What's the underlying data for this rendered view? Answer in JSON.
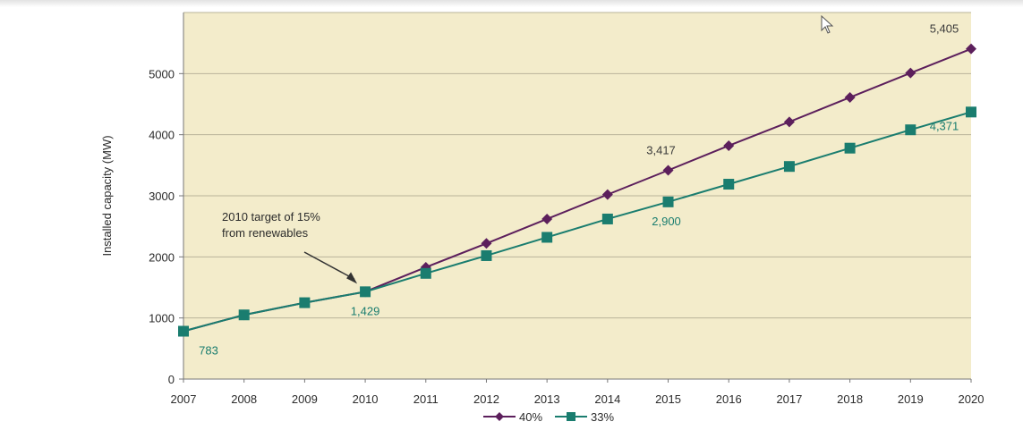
{
  "chart_data": {
    "type": "line",
    "ylabel": "Installed capacity (MW)",
    "xlabel": "",
    "title": "",
    "x": [
      "2007",
      "2008",
      "2009",
      "2010",
      "2011",
      "2012",
      "2013",
      "2014",
      "2015",
      "2016",
      "2017",
      "2018",
      "2019",
      "2020"
    ],
    "yticks": [
      0,
      1000,
      2000,
      3000,
      4000,
      5000
    ],
    "ylim": [
      0,
      6000
    ],
    "grid": true,
    "plot_background": "#f3eccb",
    "legend_position": "bottom-center",
    "series": [
      {
        "name": "40%",
        "color": "#5c1f5c",
        "marker": "diamond",
        "values": [
          783,
          1050,
          1250,
          1429,
          1830,
          2220,
          2620,
          3020,
          3417,
          3820,
          4210,
          4610,
          5010,
          5405
        ]
      },
      {
        "name": "33%",
        "color": "#1a7d6f",
        "marker": "square",
        "values": [
          783,
          1050,
          1250,
          1429,
          1730,
          2020,
          2320,
          2620,
          2900,
          3190,
          3480,
          3780,
          4080,
          4371
        ]
      }
    ],
    "data_labels": [
      {
        "series": 1,
        "index": 0,
        "text": "783",
        "color": "#1a7d6f"
      },
      {
        "series": 1,
        "index": 3,
        "text": "1,429",
        "color": "#1a7d6f"
      },
      {
        "series": 1,
        "index": 8,
        "text": "2,900",
        "color": "#1a7d6f"
      },
      {
        "series": 1,
        "index": 13,
        "text": "4,371",
        "color": "#1a7d6f"
      },
      {
        "series": 0,
        "index": 8,
        "text": "3,417",
        "color": "#3a3a3a"
      },
      {
        "series": 0,
        "index": 13,
        "text": "5,405",
        "color": "#3a3a3a"
      }
    ],
    "annotation": {
      "lines": [
        "2010 target of 15%",
        "from renewables"
      ],
      "points_to": {
        "series": 0,
        "index": 3
      }
    }
  }
}
